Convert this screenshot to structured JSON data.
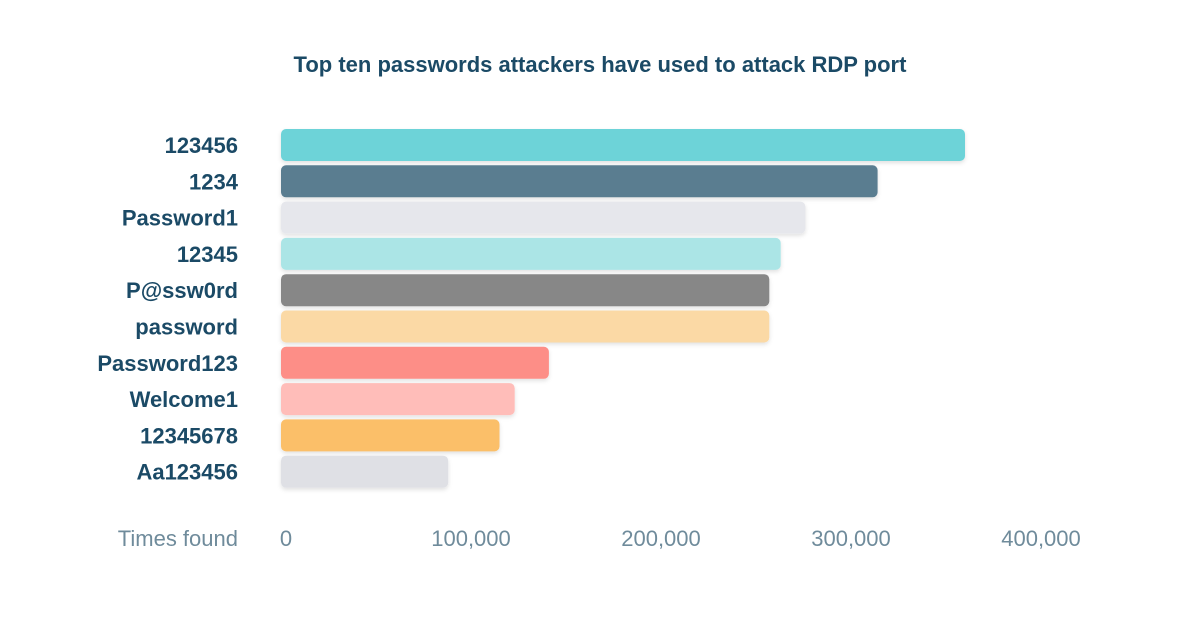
{
  "chart_data": {
    "type": "bar",
    "orientation": "horizontal",
    "title": "Top ten passwords attackers have used to attack RDP port",
    "xlabel": "Times found",
    "ylabel": "",
    "categories": [
      "123456",
      "1234",
      "Password1",
      "12345",
      "P@ssw0rd",
      "password",
      "Password123",
      "Welcome1",
      "12345678",
      "Aa123456"
    ],
    "values": [
      360000,
      314000,
      276000,
      263000,
      257000,
      257000,
      141000,
      123000,
      115000,
      88000
    ],
    "colors": [
      "#6dd3d8",
      "#5a7d90",
      "#e6e7ec",
      "#abe5e6",
      "#878787",
      "#fbd9a5",
      "#fd8e87",
      "#ffbdb9",
      "#fbbf69",
      "#dfe0e5"
    ],
    "xlim": [
      0,
      400000
    ],
    "xticks": [
      0,
      100000,
      200000,
      300000,
      400000
    ],
    "xtick_labels": [
      "0",
      "100,000",
      "200,000",
      "300,000",
      "400,000"
    ],
    "grid": false,
    "legend": "none"
  }
}
